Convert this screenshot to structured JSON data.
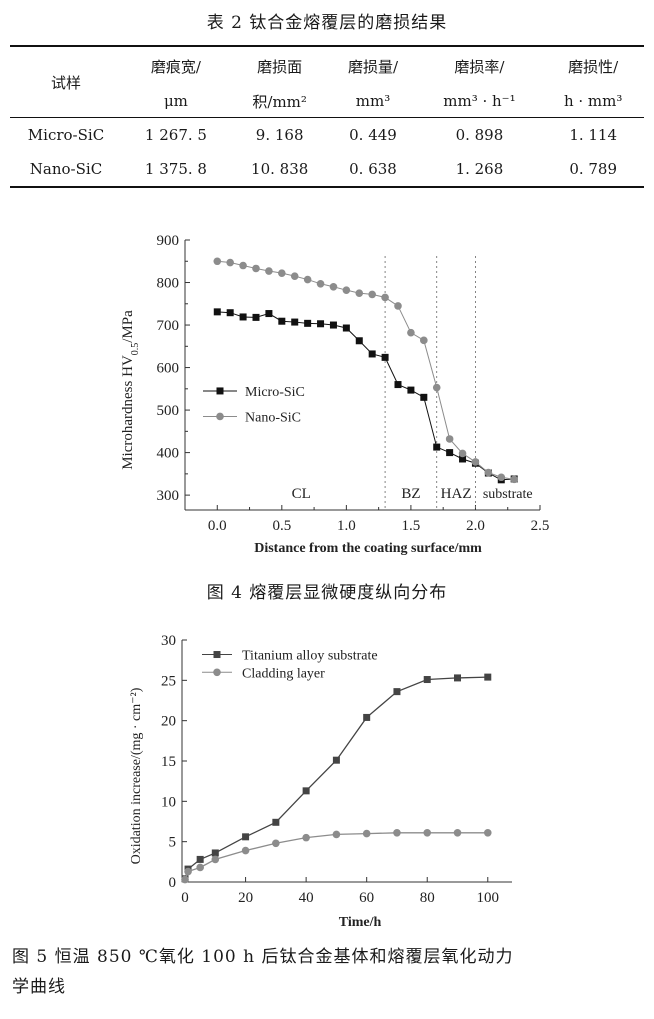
{
  "table2": {
    "caption": "表 2   钛合金熔覆层的磨损结果",
    "header": {
      "sample": "试样",
      "col1_line1": "磨痕宽/",
      "col1_line2": "μm",
      "col2_line1": "磨损面",
      "col2_line2": "积/mm²",
      "col3_line1": "磨损量/",
      "col3_line2": "mm³",
      "col4_line1": "磨损率/",
      "col4_line2": "mm³ · h⁻¹",
      "col5_line1": "磨损性/",
      "col5_line2": "h · mm³"
    },
    "rows": [
      {
        "sample": "Micro-SiC",
        "c1": "1 267. 5",
        "c2": "9. 168",
        "c3": "0. 449",
        "c4": "0. 898",
        "c5": "1. 114"
      },
      {
        "sample": "Nano-SiC",
        "c1": "1 375. 8",
        "c2": "10. 838",
        "c3": "0. 638",
        "c4": "1. 268",
        "c5": "0. 789"
      }
    ]
  },
  "fig4": {
    "caption": "图 4   熔覆层显微硬度纵向分布",
    "ylabel_main": "Microhardness HV",
    "ylabel_sub": "0.5",
    "ylabel_tail": "/MPa",
    "xlabel": "Distance from the coating surface/mm",
    "yticks": [
      "300",
      "400",
      "500",
      "600",
      "700",
      "800",
      "900"
    ],
    "xticks": [
      "0.0",
      "0.5",
      "1.0",
      "1.5",
      "2.0",
      "2.5"
    ],
    "region_labels": {
      "cl": "CL",
      "bz": "BZ",
      "haz": "HAZ",
      "substrate": "substrate"
    },
    "legend": {
      "micro": "Micro-SiC",
      "nano": "Nano-SiC"
    },
    "colors": {
      "micro": "#111111",
      "nano": "#8c8c8c",
      "axis": "#333333"
    }
  },
  "fig5": {
    "caption_line1": "图 5   恒温 850 ℃氧化 100 h 后钛合金基体和熔覆层氧化动力",
    "caption_line2": "学曲线",
    "ylabel": "Oxidation increase/(mg · cm⁻²)",
    "xlabel": "Time/h",
    "yticks": [
      "0",
      "5",
      "10",
      "15",
      "20",
      "25",
      "30"
    ],
    "xticks": [
      "0",
      "20",
      "40",
      "60",
      "80",
      "100"
    ],
    "legend": {
      "substrate": "Titanium alloy substrate",
      "cladding": "Cladding layer"
    },
    "colors": {
      "substrate": "#444444",
      "cladding": "#8c8c8c"
    }
  },
  "chart_data": [
    {
      "type": "line",
      "title": "",
      "xlabel": "Distance from the coating surface/mm",
      "ylabel": "Microhardness HV0.5/MPa",
      "xlim": [
        -0.25,
        2.5
      ],
      "ylim": [
        265,
        900
      ],
      "grid": false,
      "legend_position": "middle-left",
      "vertical_dividers": [
        1.3,
        1.7,
        2.0
      ],
      "series": [
        {
          "name": "Micro-SiC",
          "marker": "square",
          "x": [
            0,
            0.1,
            0.2,
            0.3,
            0.4,
            0.5,
            0.6,
            0.7,
            0.8,
            0.9,
            1.0,
            1.1,
            1.2,
            1.3,
            1.4,
            1.5,
            1.6,
            1.7,
            1.8,
            1.9,
            2.0,
            2.1,
            2.2,
            2.3
          ],
          "y": [
            731,
            729,
            719,
            718,
            727,
            709,
            707,
            704,
            703,
            700,
            693,
            663,
            632,
            624,
            560,
            547,
            530,
            413,
            400,
            385,
            375,
            352,
            336,
            338
          ]
        },
        {
          "name": "Nano-SiC",
          "marker": "circle",
          "x": [
            0,
            0.1,
            0.2,
            0.3,
            0.4,
            0.5,
            0.6,
            0.7,
            0.8,
            0.9,
            1.0,
            1.1,
            1.2,
            1.3,
            1.4,
            1.5,
            1.6,
            1.7,
            1.8,
            1.9,
            2.0,
            2.1,
            2.2,
            2.3
          ],
          "y": [
            850,
            847,
            840,
            833,
            827,
            822,
            815,
            807,
            797,
            790,
            782,
            775,
            772,
            765,
            745,
            682,
            664,
            553,
            432,
            398,
            378,
            353,
            342,
            337
          ]
        }
      ]
    },
    {
      "type": "line",
      "title": "",
      "xlabel": "Time/h",
      "ylabel": "Oxidation increase/(mg · cm⁻²)",
      "xlim": [
        -1,
        108
      ],
      "ylim": [
        0,
        30
      ],
      "grid": false,
      "legend_position": "top-left",
      "series": [
        {
          "name": "Titanium alloy substrate",
          "marker": "square",
          "x": [
            0,
            1,
            5,
            10,
            20,
            30,
            40,
            50,
            60,
            70,
            80,
            90,
            100
          ],
          "y": [
            0.4,
            1.6,
            2.8,
            3.6,
            5.6,
            7.4,
            11.3,
            15.1,
            20.4,
            23.6,
            25.1,
            25.3,
            25.4
          ]
        },
        {
          "name": "Cladding layer",
          "marker": "circle",
          "x": [
            0,
            1,
            5,
            10,
            20,
            30,
            40,
            50,
            60,
            70,
            80,
            90,
            100
          ],
          "y": [
            0.3,
            1.3,
            1.8,
            2.8,
            3.9,
            4.8,
            5.5,
            5.9,
            6.0,
            6.1,
            6.1,
            6.1,
            6.1
          ]
        }
      ]
    }
  ]
}
